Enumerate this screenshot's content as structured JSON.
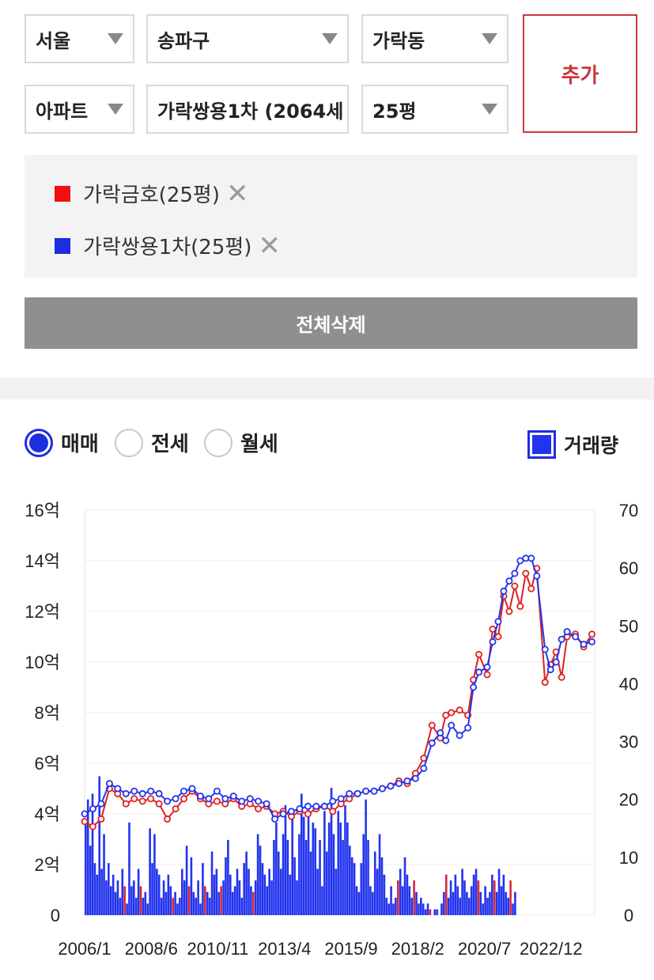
{
  "selectors": {
    "city": "서울",
    "district": "송파구",
    "dong": "가락동",
    "type": "아파트",
    "complex": "가락쌍용1차 (2064세",
    "size": "25평"
  },
  "add_button": "추가",
  "selected": [
    {
      "label": "가락금호(25평)",
      "color": "#f01010"
    },
    {
      "label": "가락쌍용1차(25평)",
      "color": "#1d2de0"
    }
  ],
  "remove_glyph": "✕",
  "delete_all_button": "전체삭제",
  "tabs": [
    {
      "label": "매매",
      "selected": true
    },
    {
      "label": "전세",
      "selected": false
    },
    {
      "label": "월세",
      "selected": false
    }
  ],
  "volume_toggle": {
    "label": "거래량",
    "checked": true
  },
  "colors": {
    "accent": "#c9373d",
    "series_a": "#e02020",
    "series_b": "#2334ee",
    "volume": "#2334ee"
  },
  "chart_data": {
    "type": "line",
    "y_left_ticks": [
      "0",
      "2억",
      "4억",
      "6억",
      "8억",
      "10억",
      "12억",
      "14억",
      "16억"
    ],
    "y_left_range": [
      0,
      16
    ],
    "y_right_ticks": [
      "0",
      "10",
      "20",
      "30",
      "40",
      "50",
      "60",
      "70"
    ],
    "y_right_range": [
      0,
      70
    ],
    "x_range": [
      2006.0,
      2024.5
    ],
    "x_ticks": [
      {
        "label": "2006/1",
        "x": 2006.0
      },
      {
        "label": "2008/6",
        "x": 2008.4167
      },
      {
        "label": "2010/11",
        "x": 2010.8333
      },
      {
        "label": "2013/4",
        "x": 2013.25
      },
      {
        "label": "2015/9",
        "x": 2015.6667
      },
      {
        "label": "2018/2",
        "x": 2018.0833
      },
      {
        "label": "2020/7",
        "x": 2020.5
      },
      {
        "label": "2022/12",
        "x": 2022.9167
      }
    ],
    "grid": true,
    "series": [
      {
        "name": "가락금호(25평)",
        "axis": "left",
        "points": [
          [
            2006.0,
            3.7
          ],
          [
            2006.3,
            3.5
          ],
          [
            2006.6,
            3.8
          ],
          [
            2006.9,
            5.0
          ],
          [
            2007.2,
            4.8
          ],
          [
            2007.5,
            4.4
          ],
          [
            2007.8,
            4.6
          ],
          [
            2008.1,
            4.5
          ],
          [
            2008.4,
            4.6
          ],
          [
            2008.7,
            4.4
          ],
          [
            2009.0,
            3.8
          ],
          [
            2009.3,
            4.2
          ],
          [
            2009.6,
            4.6
          ],
          [
            2009.9,
            4.9
          ],
          [
            2010.2,
            4.6
          ],
          [
            2010.5,
            4.4
          ],
          [
            2010.8,
            4.5
          ],
          [
            2011.1,
            4.4
          ],
          [
            2011.4,
            4.6
          ],
          [
            2011.7,
            4.3
          ],
          [
            2012.0,
            4.4
          ],
          [
            2012.3,
            4.2
          ],
          [
            2012.6,
            4.3
          ],
          [
            2012.9,
            4.0
          ],
          [
            2013.2,
            4.1
          ],
          [
            2013.5,
            3.9
          ],
          [
            2013.8,
            4.1
          ],
          [
            2014.1,
            4.0
          ],
          [
            2014.4,
            4.2
          ],
          [
            2014.7,
            4.3
          ],
          [
            2015.0,
            4.1
          ],
          [
            2015.3,
            4.4
          ],
          [
            2015.6,
            4.6
          ],
          [
            2015.9,
            4.8
          ],
          [
            2016.2,
            4.9
          ],
          [
            2016.5,
            4.9
          ],
          [
            2016.8,
            5.0
          ],
          [
            2017.1,
            5.1
          ],
          [
            2017.4,
            5.3
          ],
          [
            2017.7,
            5.2
          ],
          [
            2018.0,
            5.6
          ],
          [
            2018.3,
            6.2
          ],
          [
            2018.6,
            7.5
          ],
          [
            2018.9,
            7.0
          ],
          [
            2019.1,
            7.9
          ],
          [
            2019.3,
            8.0
          ],
          [
            2019.6,
            8.1
          ],
          [
            2019.9,
            7.9
          ],
          [
            2020.1,
            9.3
          ],
          [
            2020.3,
            10.3
          ],
          [
            2020.6,
            9.5
          ],
          [
            2020.8,
            11.3
          ],
          [
            2021.0,
            11.0
          ],
          [
            2021.2,
            12.6
          ],
          [
            2021.4,
            12.0
          ],
          [
            2021.6,
            13.0
          ],
          [
            2021.8,
            12.2
          ],
          [
            2022.0,
            13.5
          ],
          [
            2022.2,
            12.9
          ],
          [
            2022.4,
            13.7
          ],
          [
            2022.7,
            9.2
          ],
          [
            2022.9,
            9.9
          ],
          [
            2023.1,
            10.4
          ],
          [
            2023.3,
            9.4
          ],
          [
            2023.5,
            11.0
          ],
          [
            2023.8,
            11.1
          ],
          [
            2024.1,
            10.6
          ],
          [
            2024.4,
            11.1
          ]
        ]
      },
      {
        "name": "가락쌍용1차(25평)",
        "axis": "left",
        "points": [
          [
            2006.0,
            4.0
          ],
          [
            2006.3,
            4.2
          ],
          [
            2006.6,
            4.4
          ],
          [
            2006.9,
            5.2
          ],
          [
            2007.2,
            5.0
          ],
          [
            2007.5,
            4.8
          ],
          [
            2007.8,
            4.9
          ],
          [
            2008.1,
            4.8
          ],
          [
            2008.4,
            4.9
          ],
          [
            2008.7,
            4.8
          ],
          [
            2009.0,
            4.5
          ],
          [
            2009.3,
            4.6
          ],
          [
            2009.6,
            4.9
          ],
          [
            2009.9,
            5.0
          ],
          [
            2010.2,
            4.7
          ],
          [
            2010.5,
            4.6
          ],
          [
            2010.8,
            4.9
          ],
          [
            2011.1,
            4.6
          ],
          [
            2011.4,
            4.7
          ],
          [
            2011.7,
            4.5
          ],
          [
            2012.0,
            4.6
          ],
          [
            2012.3,
            4.5
          ],
          [
            2012.6,
            4.4
          ],
          [
            2012.9,
            3.8
          ],
          [
            2013.2,
            4.0
          ],
          [
            2013.5,
            4.1
          ],
          [
            2013.8,
            4.2
          ],
          [
            2014.1,
            4.3
          ],
          [
            2014.4,
            4.3
          ],
          [
            2014.7,
            4.3
          ],
          [
            2015.0,
            4.5
          ],
          [
            2015.3,
            4.6
          ],
          [
            2015.6,
            4.8
          ],
          [
            2015.9,
            4.8
          ],
          [
            2016.2,
            4.9
          ],
          [
            2016.5,
            4.9
          ],
          [
            2016.8,
            5.0
          ],
          [
            2017.1,
            5.1
          ],
          [
            2017.4,
            5.2
          ],
          [
            2017.7,
            5.3
          ],
          [
            2018.0,
            5.4
          ],
          [
            2018.3,
            5.8
          ],
          [
            2018.6,
            6.8
          ],
          [
            2018.9,
            7.2
          ],
          [
            2019.1,
            6.9
          ],
          [
            2019.3,
            7.5
          ],
          [
            2019.6,
            7.1
          ],
          [
            2019.9,
            7.4
          ],
          [
            2020.1,
            9.0
          ],
          [
            2020.3,
            9.6
          ],
          [
            2020.6,
            9.8
          ],
          [
            2020.8,
            10.8
          ],
          [
            2021.0,
            11.6
          ],
          [
            2021.2,
            12.8
          ],
          [
            2021.4,
            13.2
          ],
          [
            2021.6,
            13.5
          ],
          [
            2021.8,
            14.0
          ],
          [
            2022.0,
            14.1
          ],
          [
            2022.2,
            14.1
          ],
          [
            2022.4,
            13.4
          ],
          [
            2022.7,
            10.5
          ],
          [
            2022.9,
            9.7
          ],
          [
            2023.1,
            10.0
          ],
          [
            2023.3,
            10.9
          ],
          [
            2023.5,
            11.2
          ],
          [
            2023.8,
            11.0
          ],
          [
            2024.1,
            10.7
          ],
          [
            2024.4,
            10.8
          ]
        ]
      }
    ],
    "volume": {
      "axis": "right",
      "start": 2006.0,
      "step": 0.0833,
      "values": [
        16,
        20,
        12,
        21,
        9,
        7,
        24,
        8,
        14,
        6,
        9,
        5,
        7,
        4,
        6,
        3,
        8,
        5,
        2,
        16,
        5,
        6,
        3,
        8,
        5,
        3,
        4,
        2,
        15,
        9,
        14,
        8,
        7,
        3,
        6,
        4,
        7,
        5,
        3,
        4,
        2,
        3,
        8,
        6,
        12,
        5,
        10,
        4,
        3,
        6,
        2,
        9,
        5,
        4,
        3,
        11,
        7,
        8,
        4,
        5,
        6,
        10,
        13,
        7,
        4,
        5,
        8,
        6,
        3,
        9,
        11,
        8,
        5,
        4,
        6,
        14,
        12,
        9,
        7,
        5,
        8,
        6,
        13,
        16,
        11,
        8,
        14,
        19,
        13,
        7,
        17,
        10,
        6,
        14,
        21,
        17,
        13,
        19,
        11,
        16,
        15,
        8,
        13,
        5,
        18,
        11,
        16,
        22,
        14,
        8,
        18,
        16,
        13,
        19,
        16,
        12,
        10,
        9,
        5,
        4,
        9,
        14,
        20,
        13,
        5,
        4,
        11,
        8,
        14,
        10,
        7,
        3,
        2,
        5,
        2,
        3,
        6,
        8,
        5,
        10,
        7,
        5,
        3,
        6,
        4,
        2,
        3,
        2,
        1,
        2,
        1,
        0,
        1,
        1,
        0,
        2,
        4,
        7,
        3,
        6,
        4,
        7,
        5,
        3,
        8,
        6,
        4,
        3,
        5,
        7,
        8,
        6,
        4,
        2,
        5,
        3,
        4,
        7,
        6,
        4,
        8,
        5,
        7,
        4,
        3,
        6,
        2,
        4
      ]
    }
  }
}
